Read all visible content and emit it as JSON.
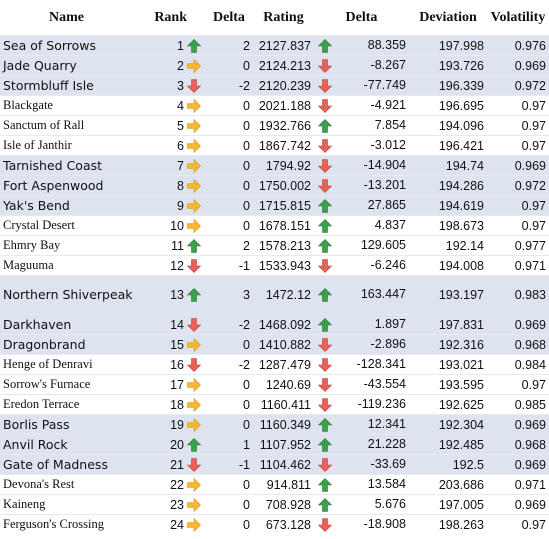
{
  "headers": [
    "Name",
    "Rank",
    "Delta",
    "Rating",
    "Delta",
    "Deviation",
    "Volatility"
  ],
  "colors": {
    "highlight": "#dde4ef",
    "up": "#3aa04a",
    "down": "#e8605a",
    "flat": "#f5b830"
  },
  "rows": [
    {
      "name": "Sea of Sorrows",
      "rank": "1",
      "rank_icon": "up-arrow-icon",
      "delta": "2",
      "rating": "2127.837",
      "rating_icon": "up-arrow-icon",
      "rating_delta": "88.359",
      "deviation": "197.998",
      "volatility": "0.976",
      "highlight": true
    },
    {
      "name": "Jade Quarry",
      "rank": "2",
      "rank_icon": "right-arrow-icon",
      "delta": "0",
      "rating": "2124.213",
      "rating_icon": "down-arrow-icon",
      "rating_delta": "-8.267",
      "deviation": "193.726",
      "volatility": "0.969",
      "highlight": true
    },
    {
      "name": "Stormbluff Isle",
      "rank": "3",
      "rank_icon": "down-arrow-icon",
      "delta": "-2",
      "rating": "2120.239",
      "rating_icon": "down-arrow-icon",
      "rating_delta": "-77.749",
      "deviation": "196.339",
      "volatility": "0.972",
      "highlight": true
    },
    {
      "name": "Blackgate",
      "rank": "4",
      "rank_icon": "right-arrow-icon",
      "delta": "0",
      "rating": "2021.188",
      "rating_icon": "down-arrow-icon",
      "rating_delta": "-4.921",
      "deviation": "196.695",
      "volatility": "0.97",
      "highlight": false
    },
    {
      "name": "Sanctum of Rall",
      "rank": "5",
      "rank_icon": "right-arrow-icon",
      "delta": "0",
      "rating": "1932.766",
      "rating_icon": "up-arrow-icon",
      "rating_delta": "7.854",
      "deviation": "194.096",
      "volatility": "0.97",
      "highlight": false
    },
    {
      "name": "Isle of Janthir",
      "rank": "6",
      "rank_icon": "right-arrow-icon",
      "delta": "0",
      "rating": "1867.742",
      "rating_icon": "down-arrow-icon",
      "rating_delta": "-3.012",
      "deviation": "196.421",
      "volatility": "0.97",
      "highlight": false
    },
    {
      "name": "Tarnished Coast",
      "rank": "7",
      "rank_icon": "right-arrow-icon",
      "delta": "0",
      "rating": "1794.92",
      "rating_icon": "down-arrow-icon",
      "rating_delta": "-14.904",
      "deviation": "194.74",
      "volatility": "0.969",
      "highlight": true
    },
    {
      "name": "Fort Aspenwood",
      "rank": "8",
      "rank_icon": "right-arrow-icon",
      "delta": "0",
      "rating": "1750.002",
      "rating_icon": "down-arrow-icon",
      "rating_delta": "-13.201",
      "deviation": "194.286",
      "volatility": "0.972",
      "highlight": true
    },
    {
      "name": "Yak's Bend",
      "rank": "9",
      "rank_icon": "right-arrow-icon",
      "delta": "0",
      "rating": "1715.815",
      "rating_icon": "up-arrow-icon",
      "rating_delta": "27.865",
      "deviation": "194.619",
      "volatility": "0.97",
      "highlight": true
    },
    {
      "name": "Crystal Desert",
      "rank": "10",
      "rank_icon": "right-arrow-icon",
      "delta": "0",
      "rating": "1678.151",
      "rating_icon": "up-arrow-icon",
      "rating_delta": "4.837",
      "deviation": "198.673",
      "volatility": "0.97",
      "highlight": false
    },
    {
      "name": "Ehmry Bay",
      "rank": "11",
      "rank_icon": "up-arrow-icon",
      "delta": "2",
      "rating": "1578.213",
      "rating_icon": "up-arrow-icon",
      "rating_delta": "129.605",
      "deviation": "192.14",
      "volatility": "0.977",
      "highlight": false
    },
    {
      "name": "Maguuma",
      "rank": "12",
      "rank_icon": "down-arrow-icon",
      "delta": "-1",
      "rating": "1533.943",
      "rating_icon": "down-arrow-icon",
      "rating_delta": "-6.246",
      "deviation": "194.008",
      "volatility": "0.971",
      "highlight": false
    },
    {
      "name": "Northern Shiverpeaks",
      "rank": "13",
      "rank_icon": "up-arrow-icon",
      "delta": "3",
      "rating": "1472.12",
      "rating_icon": "up-arrow-icon",
      "rating_delta": "163.447",
      "deviation": "193.197",
      "volatility": "0.983",
      "highlight": true,
      "tall": true
    },
    {
      "name": "Darkhaven",
      "rank": "14",
      "rank_icon": "down-arrow-icon",
      "delta": "-2",
      "rating": "1468.092",
      "rating_icon": "up-arrow-icon",
      "rating_delta": "1.897",
      "deviation": "197.831",
      "volatility": "0.969",
      "highlight": true
    },
    {
      "name": "Dragonbrand",
      "rank": "15",
      "rank_icon": "right-arrow-icon",
      "delta": "0",
      "rating": "1410.882",
      "rating_icon": "down-arrow-icon",
      "rating_delta": "-2.896",
      "deviation": "192.316",
      "volatility": "0.968",
      "highlight": true
    },
    {
      "name": "Henge of Denravi",
      "rank": "16",
      "rank_icon": "down-arrow-icon",
      "delta": "-2",
      "rating": "1287.479",
      "rating_icon": "down-arrow-icon",
      "rating_delta": "-128.341",
      "deviation": "193.021",
      "volatility": "0.984",
      "highlight": false
    },
    {
      "name": "Sorrow's Furnace",
      "rank": "17",
      "rank_icon": "right-arrow-icon",
      "delta": "0",
      "rating": "1240.69",
      "rating_icon": "down-arrow-icon",
      "rating_delta": "-43.554",
      "deviation": "193.595",
      "volatility": "0.97",
      "highlight": false
    },
    {
      "name": "Eredon Terrace",
      "rank": "18",
      "rank_icon": "right-arrow-icon",
      "delta": "0",
      "rating": "1160.411",
      "rating_icon": "down-arrow-icon",
      "rating_delta": "-119.236",
      "deviation": "192.625",
      "volatility": "0.985",
      "highlight": false
    },
    {
      "name": "Borlis Pass",
      "rank": "19",
      "rank_icon": "right-arrow-icon",
      "delta": "0",
      "rating": "1160.349",
      "rating_icon": "up-arrow-icon",
      "rating_delta": "12.341",
      "deviation": "192.304",
      "volatility": "0.969",
      "highlight": true
    },
    {
      "name": "Anvil Rock",
      "rank": "20",
      "rank_icon": "up-arrow-icon",
      "delta": "1",
      "rating": "1107.952",
      "rating_icon": "up-arrow-icon",
      "rating_delta": "21.228",
      "deviation": "192.485",
      "volatility": "0.968",
      "highlight": true
    },
    {
      "name": "Gate of Madness",
      "rank": "21",
      "rank_icon": "down-arrow-icon",
      "delta": "-1",
      "rating": "1104.462",
      "rating_icon": "down-arrow-icon",
      "rating_delta": "-33.69",
      "deviation": "192.5",
      "volatility": "0.969",
      "highlight": true
    },
    {
      "name": "Devona's Rest",
      "rank": "22",
      "rank_icon": "right-arrow-icon",
      "delta": "0",
      "rating": "914.811",
      "rating_icon": "up-arrow-icon",
      "rating_delta": "13.584",
      "deviation": "203.686",
      "volatility": "0.971",
      "highlight": false
    },
    {
      "name": "Kaineng",
      "rank": "23",
      "rank_icon": "right-arrow-icon",
      "delta": "0",
      "rating": "708.928",
      "rating_icon": "up-arrow-icon",
      "rating_delta": "5.676",
      "deviation": "197.005",
      "volatility": "0.969",
      "highlight": false
    },
    {
      "name": "Ferguson's Crossing",
      "rank": "24",
      "rank_icon": "right-arrow-icon",
      "delta": "0",
      "rating": "673.128",
      "rating_icon": "down-arrow-icon",
      "rating_delta": "-18.908",
      "deviation": "198.263",
      "volatility": "0.97",
      "highlight": false
    }
  ]
}
